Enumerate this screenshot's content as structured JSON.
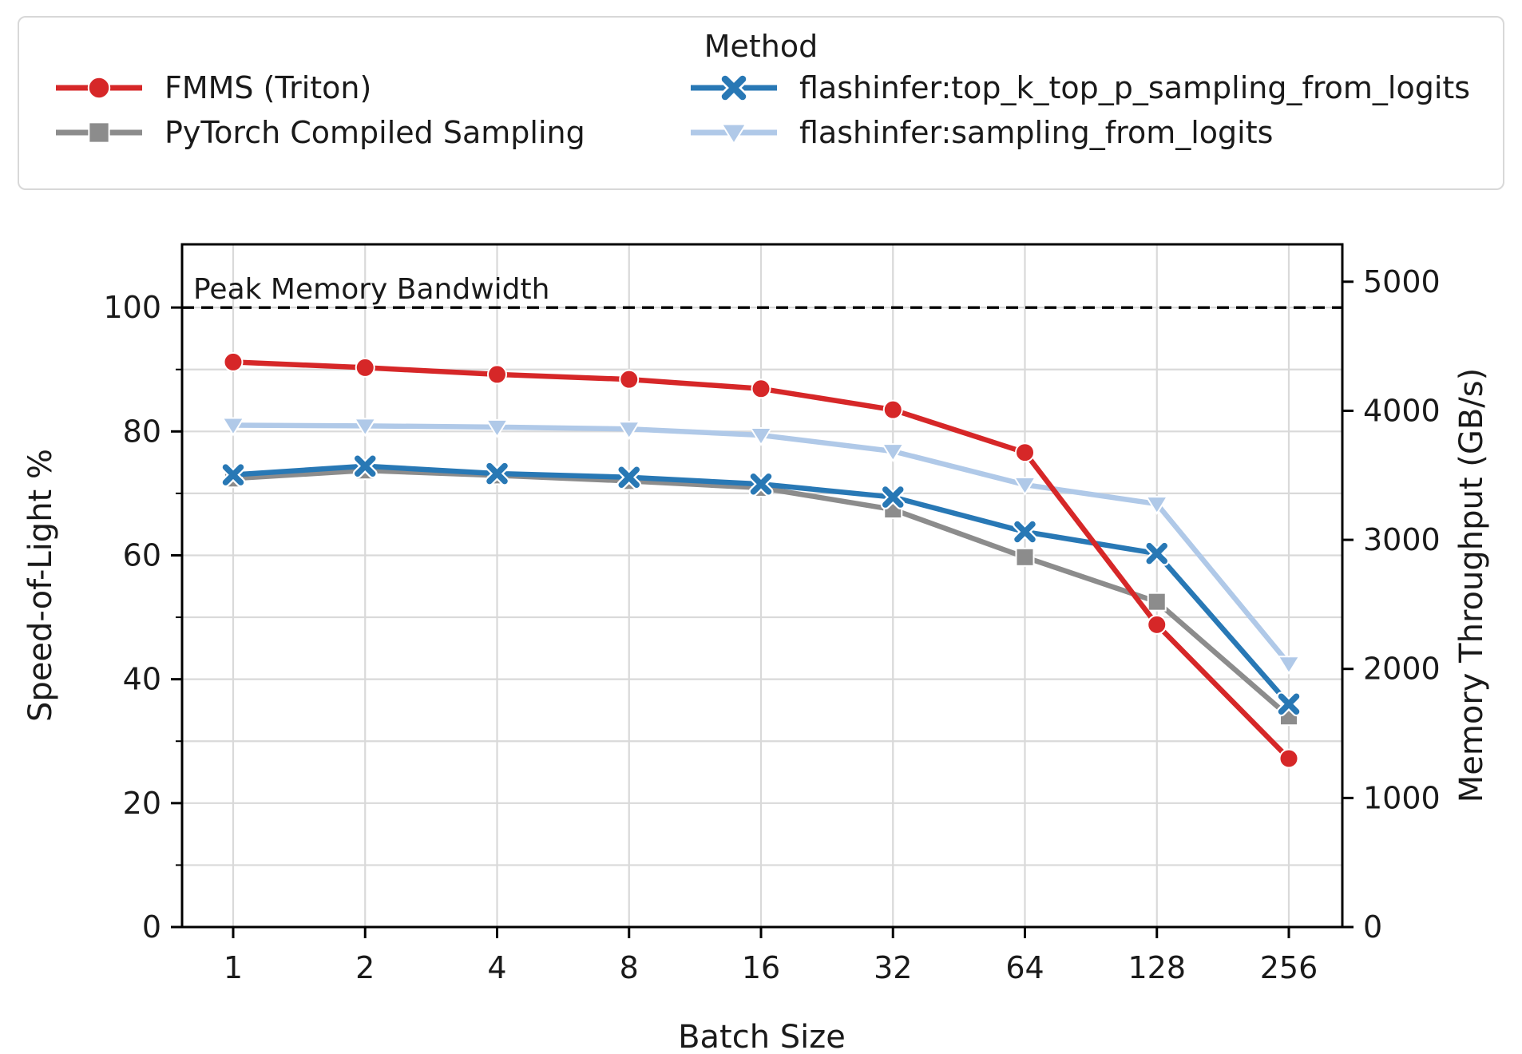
{
  "legend": {
    "title": "Method",
    "entries": [
      {
        "label": "FMMS (Triton)",
        "color": "#d62728",
        "marker": "circle"
      },
      {
        "label": "PyTorch Compiled Sampling",
        "color": "#8c8c8c",
        "marker": "square"
      },
      {
        "label": "flashinfer:top_k_top_p_sampling_from_logits",
        "color": "#2878b5",
        "marker": "x"
      },
      {
        "label": "flashinfer:sampling_from_logits",
        "color": "#b0c9e8",
        "marker": "triangle-down"
      }
    ]
  },
  "chart_data": {
    "type": "line",
    "x_scale": "log2",
    "x": [
      1,
      2,
      4,
      8,
      16,
      32,
      64,
      128,
      256
    ],
    "xlabel": "Batch Size",
    "ylabel_left": "Speed-of-Light %",
    "ylabel_right": "Memory Throughput (GB/s)",
    "ylim_left": [
      0,
      110
    ],
    "ylim_right": [
      0,
      5280
    ],
    "yticks_left": [
      0,
      20,
      40,
      60,
      80,
      100
    ],
    "yticks_left_minor": [
      10,
      30,
      50,
      70,
      90
    ],
    "yticks_right": [
      0,
      1000,
      2000,
      3000,
      4000,
      5000
    ],
    "grid": true,
    "legend_position": "top",
    "reference_line": {
      "label": "Peak Memory Bandwidth",
      "sol_percent": 100,
      "throughput_gbs": 4800,
      "style": "dashed",
      "color": "#000000"
    },
    "series": [
      {
        "name": "FMMS (Triton)",
        "marker": "circle",
        "color": "#d62728",
        "sol_percent": [
          91.2,
          90.3,
          89.2,
          88.4,
          86.9,
          83.5,
          76.6,
          48.8,
          27.2
        ],
        "throughput_gbs": [
          4378,
          4334,
          4282,
          4243,
          4171,
          4008,
          3677,
          2342,
          1306
        ]
      },
      {
        "name": "PyTorch Compiled Sampling",
        "marker": "square",
        "color": "#8c8c8c",
        "sol_percent": [
          72.4,
          73.7,
          72.9,
          72.0,
          70.9,
          67.4,
          59.7,
          52.5,
          34.0
        ],
        "throughput_gbs": [
          3475,
          3538,
          3499,
          3456,
          3403,
          3235,
          2866,
          2520,
          1632
        ]
      },
      {
        "name": "flashinfer:top_k_top_p_sampling_from_logits",
        "marker": "x",
        "color": "#2878b5",
        "sol_percent": [
          73.0,
          74.4,
          73.2,
          72.6,
          71.5,
          69.4,
          63.8,
          60.3,
          36.0
        ],
        "throughput_gbs": [
          3504,
          3571,
          3514,
          3485,
          3432,
          3331,
          3062,
          2894,
          1728
        ]
      },
      {
        "name": "flashinfer:sampling_from_logits",
        "marker": "triangle-down",
        "color": "#b0c9e8",
        "sol_percent": [
          81.0,
          80.9,
          80.7,
          80.4,
          79.4,
          76.8,
          71.4,
          68.3,
          42.5
        ],
        "throughput_gbs": [
          3888,
          3883,
          3874,
          3859,
          3811,
          3686,
          3427,
          3278,
          2040
        ]
      }
    ],
    "colors": {
      "grid": "#d9d9d9",
      "spine": "#000000",
      "text": "#1a1a1a",
      "background": "#ffffff"
    }
  }
}
